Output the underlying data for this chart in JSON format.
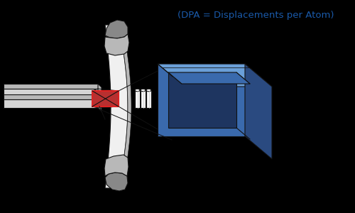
{
  "title": "(DPA = Displacements per Atom)",
  "title_color": "#1a5aaa",
  "title_fontsize": 9.5,
  "bg_color": "#000000",
  "wall_white": "#f0f0f0",
  "wall_gray": "#b8b8b8",
  "wall_dark_gray": "#888888",
  "wall_darkest": "#555555",
  "box_blue_front": "#3a6aad",
  "box_blue_top": "#6a9fd8",
  "box_blue_side": "#2a4a80",
  "box_blue_inner": "#1e3560",
  "beam_light": "#d5d5d5",
  "beam_mid": "#b5b5b5",
  "beam_dark": "#909090",
  "target_red": "#b83030",
  "target_red_edge": "#dd2222",
  "outline": "#111111",
  "cyl_white": "#f5f5f5",
  "cyl_gray": "#cccccc"
}
